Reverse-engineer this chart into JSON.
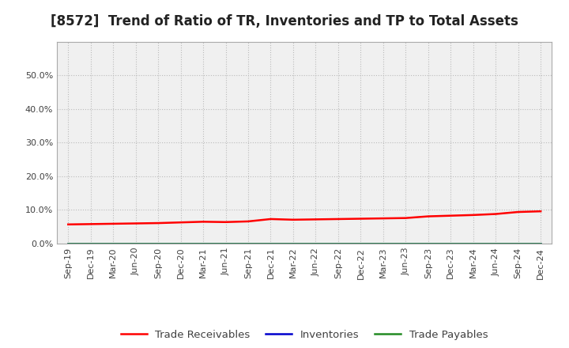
{
  "title": "[8572]  Trend of Ratio of TR, Inventories and TP to Total Assets",
  "x_labels": [
    "Sep-19",
    "Dec-19",
    "Mar-20",
    "Jun-20",
    "Sep-20",
    "Dec-20",
    "Mar-21",
    "Jun-21",
    "Sep-21",
    "Dec-21",
    "Mar-22",
    "Jun-22",
    "Sep-22",
    "Dec-22",
    "Mar-23",
    "Jun-23",
    "Sep-23",
    "Dec-23",
    "Mar-24",
    "Jun-24",
    "Sep-24",
    "Dec-24"
  ],
  "trade_receivables": [
    0.057,
    0.058,
    0.059,
    0.06,
    0.061,
    0.063,
    0.065,
    0.064,
    0.066,
    0.073,
    0.071,
    0.072,
    0.073,
    0.074,
    0.075,
    0.076,
    0.081,
    0.083,
    0.085,
    0.088,
    0.094,
    0.096
  ],
  "inventories": [
    0.0,
    0.0,
    0.0,
    0.0,
    0.0,
    0.0,
    0.0,
    0.0,
    0.0,
    0.0,
    0.0,
    0.0,
    0.0,
    0.0,
    0.0,
    0.0,
    0.0,
    0.0,
    0.0,
    0.0,
    0.0,
    0.0
  ],
  "trade_payables": [
    0.0,
    0.0,
    0.0,
    0.0,
    0.0,
    0.0,
    0.0,
    0.0,
    0.0,
    0.0,
    0.0,
    0.0,
    0.0,
    0.0,
    0.0,
    0.0,
    0.0,
    0.0,
    0.0,
    0.0,
    0.0,
    0.0
  ],
  "tr_color": "#FF0000",
  "inv_color": "#0000CD",
  "tp_color": "#228B22",
  "ylim": [
    0.0,
    0.6
  ],
  "yticks": [
    0.0,
    0.1,
    0.2,
    0.3,
    0.4,
    0.5
  ],
  "background_color": "#FFFFFF",
  "plot_bg_color": "#F0F0F0",
  "grid_color": "#BBBBBB",
  "title_fontsize": 12,
  "legend_fontsize": 9.5,
  "tick_fontsize": 8,
  "label_color": "#404040"
}
